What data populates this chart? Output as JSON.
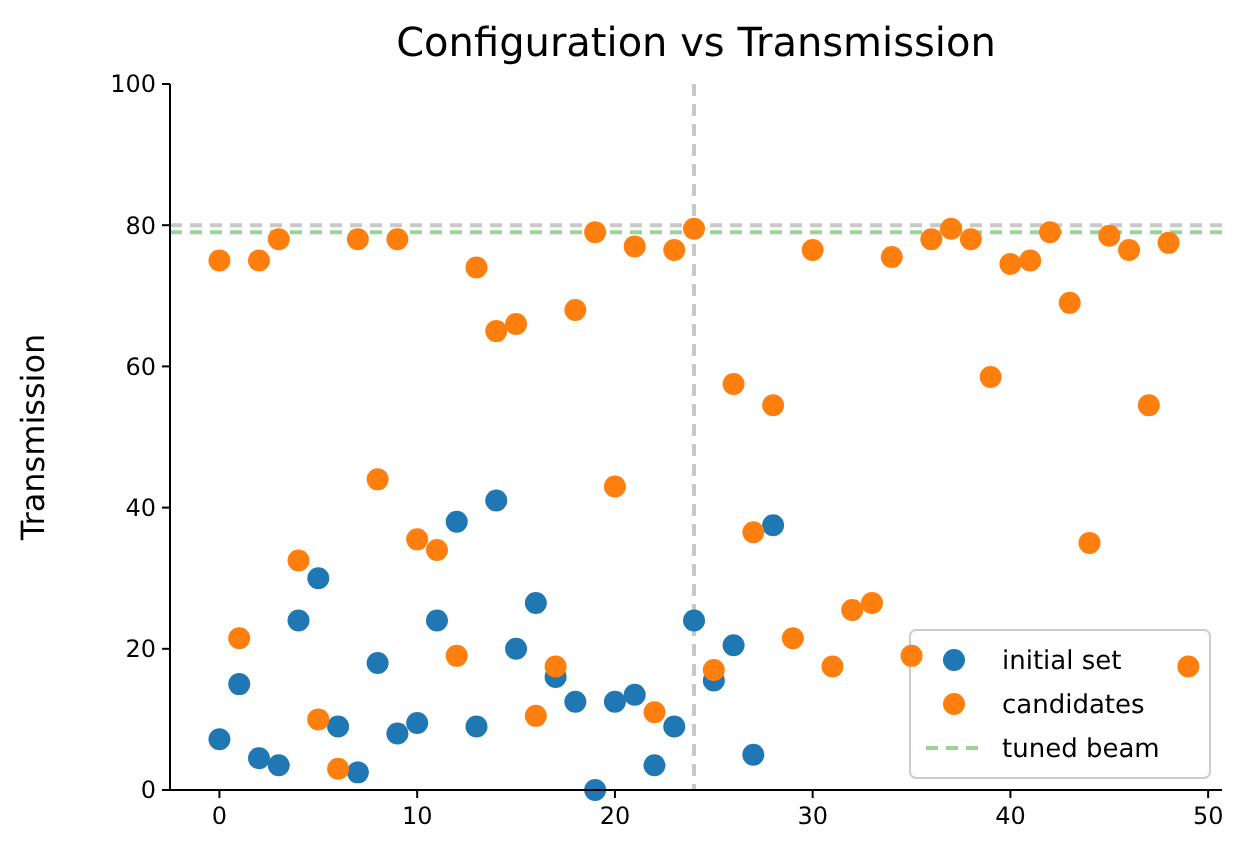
{
  "chart_data": {
    "type": "scatter",
    "title": "Configuration vs Transmission",
    "ylabel": "Transmission",
    "xlim": [
      -2.5,
      50.7
    ],
    "ylim": [
      0,
      100
    ],
    "xticks": [
      0,
      10,
      20,
      30,
      40,
      50
    ],
    "yticks": [
      0,
      20,
      40,
      60,
      80,
      100
    ],
    "grid": false,
    "legend": "bottom right",
    "marker": "circle",
    "series": [
      {
        "name": "initial set",
        "color": "#1f77b4",
        "x": [
          0,
          1,
          2,
          3,
          4,
          5,
          6,
          7,
          8,
          9,
          10,
          11,
          12,
          13,
          14,
          15,
          16,
          17,
          18,
          19,
          20,
          21,
          22,
          23,
          24,
          25,
          26,
          27,
          28
        ],
        "values": [
          7.2,
          15,
          4.5,
          3.5,
          24,
          30,
          9,
          2.5,
          18,
          8,
          9.5,
          24,
          38,
          9,
          41,
          20,
          26.5,
          16,
          12.5,
          0,
          12.5,
          13.5,
          3.5,
          9,
          24,
          15.5,
          20.5,
          5,
          37.5
        ]
      },
      {
        "name": "candidates",
        "color": "#ff7f0e",
        "x": [
          0,
          1,
          2,
          3,
          4,
          5,
          6,
          7,
          8,
          9,
          10,
          11,
          12,
          13,
          14,
          15,
          16,
          17,
          18,
          19,
          20,
          21,
          22,
          23,
          24,
          25,
          26,
          27,
          28,
          29,
          30,
          31,
          32,
          33,
          34,
          35,
          36,
          37,
          38,
          39,
          40,
          41,
          42,
          43,
          44,
          45,
          46,
          47,
          48,
          49
        ],
        "values": [
          75,
          21.5,
          75,
          78,
          32.5,
          10,
          3,
          78,
          44,
          78,
          35.5,
          34,
          19,
          74,
          65,
          66,
          10.5,
          17.5,
          68,
          79,
          43,
          77,
          11,
          76.5,
          79.5,
          17,
          57.5,
          36.5,
          54.5,
          21.5,
          76.5,
          17.5,
          25.5,
          26.5,
          75.5,
          19,
          78,
          79.5,
          78,
          58.5,
          74.5,
          75,
          79,
          69,
          35,
          78.5,
          76.5,
          54.5,
          77.5,
          17.5
        ]
      }
    ],
    "ref_lines": [
      {
        "axis": "y",
        "value": 80,
        "color": "#c8c8c8",
        "line_style": "dashed"
      },
      {
        "axis": "y",
        "value": 79,
        "label": "tuned beam",
        "color": "#98d498",
        "line_style": "dashed"
      },
      {
        "axis": "x",
        "value": 24,
        "color": "#c8c8c8",
        "line_style": "dashed"
      }
    ]
  }
}
